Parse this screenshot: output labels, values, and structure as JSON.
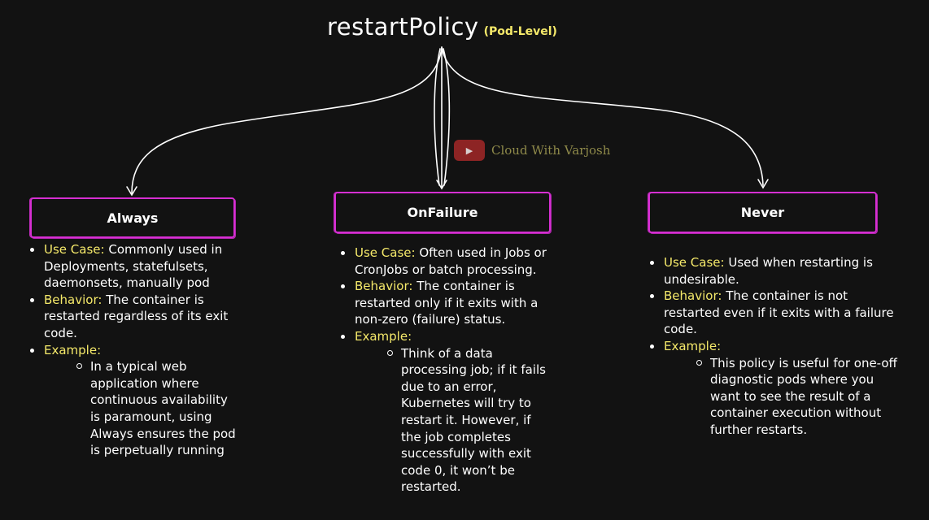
{
  "title": {
    "main": "restartPolicy",
    "sub": "(Pod-Level)"
  },
  "watermark": {
    "text": "Cloud With Varjosh",
    "icon": "youtube-play-icon"
  },
  "colors": {
    "background": "#121212",
    "box_border": "#d62fd2",
    "label": "#f5e96a",
    "text": "#ffffff"
  },
  "policies": [
    {
      "name": "Always",
      "use_case_label": "Use Case:",
      "use_case": "Commonly used in Deployments, statefulsets, daemonsets, manually pod",
      "behavior_label": "Behavior:",
      "behavior": "The container is restarted regardless of its exit code.",
      "example_label": "Example:",
      "example": "In a typical web application where continuous availability is paramount, using Always ensures the pod is perpetually running"
    },
    {
      "name": "OnFailure",
      "use_case_label": "Use Case:",
      "use_case": "Often used in Jobs or CronJobs or batch processing.",
      "behavior_label": "Behavior:",
      "behavior": "The container is restarted only if it exits with a non-zero (failure) status.",
      "example_label": "Example:",
      "example": "Think of a data processing job; if it fails due to an error, Kubernetes will try to restart it. However, if the job completes successfully with exit code 0, it won’t be restarted."
    },
    {
      "name": "Never",
      "use_case_label": "Use Case:",
      "use_case": "Used when restarting is undesirable.",
      "behavior_label": "Behavior:",
      "behavior": "The container is not restarted even if it exits with a failure code.",
      "example_label": "Example:",
      "example": "This policy is useful for one-off diagnostic pods where you want to see the result of a container execution without further restarts."
    }
  ]
}
